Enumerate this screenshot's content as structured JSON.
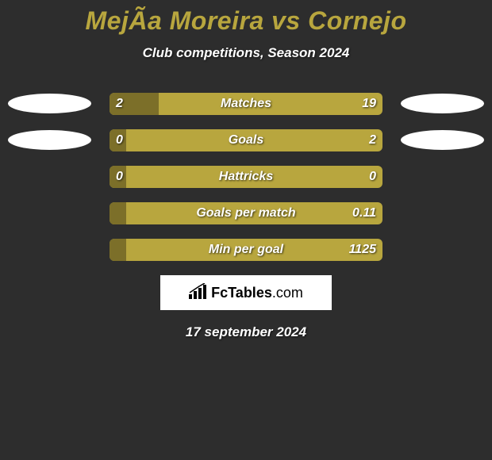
{
  "title": "MejÃ­a Moreira vs Cornejo",
  "subtitle": "Club competitions, Season 2024",
  "date": "17 september 2024",
  "logo": {
    "text_main": "FcTables",
    "text_sub": ".com"
  },
  "colors": {
    "background": "#2d2d2d",
    "bar_light": "#b8a63e",
    "bar_dark": "#7c6f29",
    "title": "#b8a63e",
    "text": "#ffffff",
    "ellipse": "#ffffff"
  },
  "stats": [
    {
      "label": "Matches",
      "left_value": "2",
      "right_value": "19",
      "left_raw": 2,
      "right_raw": 19,
      "fill_percent": 18,
      "left_ellipse": true,
      "right_ellipse": true
    },
    {
      "label": "Goals",
      "left_value": "0",
      "right_value": "2",
      "left_raw": 0,
      "right_raw": 2,
      "fill_percent": 6,
      "left_ellipse": true,
      "right_ellipse": true
    },
    {
      "label": "Hattricks",
      "left_value": "0",
      "right_value": "0",
      "left_raw": 0,
      "right_raw": 0,
      "fill_percent": 6,
      "left_ellipse": false,
      "right_ellipse": false
    },
    {
      "label": "Goals per match",
      "left_value": "",
      "right_value": "0.11",
      "left_raw": 0,
      "right_raw": 0.11,
      "fill_percent": 6,
      "left_ellipse": false,
      "right_ellipse": false
    },
    {
      "label": "Min per goal",
      "left_value": "",
      "right_value": "1125",
      "left_raw": 0,
      "right_raw": 1125,
      "fill_percent": 6,
      "left_ellipse": false,
      "right_ellipse": false
    }
  ]
}
